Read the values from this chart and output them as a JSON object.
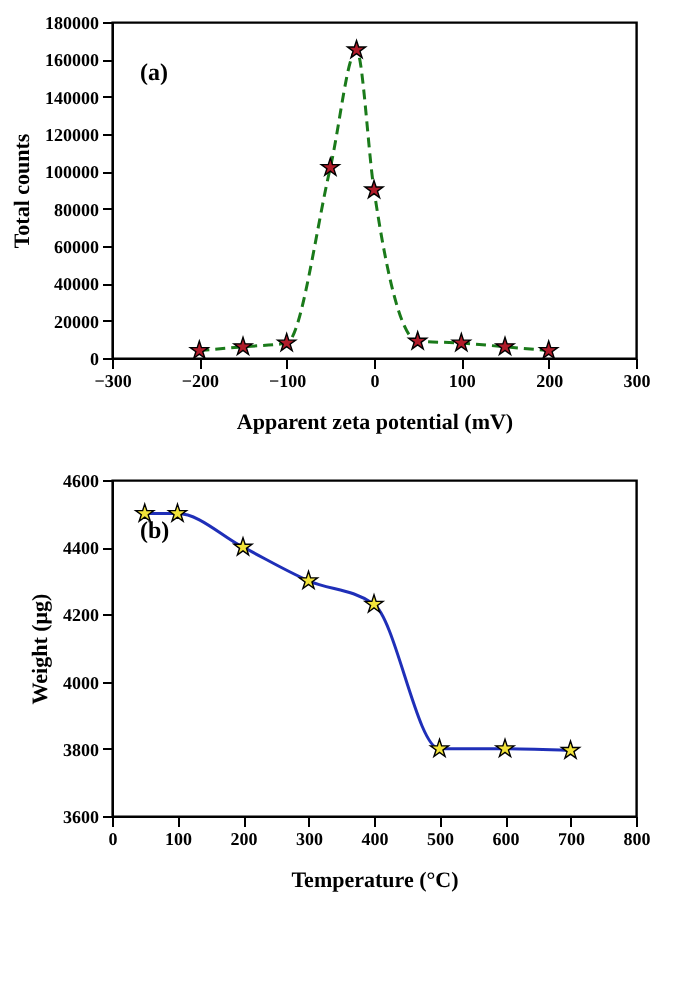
{
  "chart_data": [
    {
      "type": "line",
      "xlabel": "Apparent zeta potential (mV)",
      "ylabel": "Total counts",
      "annotations": [
        "(a)"
      ],
      "x": [
        -200,
        -150,
        -100,
        -50,
        -20,
        0,
        50,
        100,
        150,
        200
      ],
      "series": [
        {
          "type": "line",
          "color": "#1a7a1a",
          "line_style": "dashed",
          "marker": "none",
          "values": [
            4000,
            6000,
            8000,
            102000,
            165000,
            90000,
            9000,
            8000,
            6000,
            4000
          ]
        },
        {
          "type": "scatter",
          "color": "#b01c2a",
          "marker": "star",
          "values": [
            4000,
            6000,
            8000,
            102000,
            165000,
            90000,
            9000,
            8000,
            6000,
            4000
          ]
        }
      ],
      "xlim": [
        -300,
        300
      ],
      "xticks": [
        -300,
        -200,
        -100,
        0,
        100,
        200,
        300
      ],
      "ylim": [
        0,
        180000
      ],
      "yticks": [
        0,
        20000,
        40000,
        60000,
        80000,
        100000,
        120000,
        140000,
        160000,
        180000
      ],
      "grid": false
    },
    {
      "type": "line",
      "xlabel": "Temperature (°C)",
      "ylabel": "Weight (μg)",
      "annotations": [
        "(b)"
      ],
      "x": [
        50,
        100,
        200,
        300,
        400,
        500,
        600,
        700
      ],
      "series": [
        {
          "type": "line",
          "color": "#1f2fb8",
          "line_style": "solid",
          "marker": "none",
          "values": [
            4500,
            4500,
            4400,
            4300,
            4230,
            3800,
            3800,
            3795
          ]
        },
        {
          "type": "scatter",
          "color": "#f2e33a",
          "marker": "star",
          "values": [
            4500,
            4500,
            4400,
            4300,
            4230,
            3800,
            3800,
            3795
          ]
        }
      ],
      "xlim": [
        0,
        800
      ],
      "xticks": [
        0,
        100,
        200,
        300,
        400,
        500,
        600,
        700,
        800
      ],
      "ylim": [
        3600,
        4600
      ],
      "yticks": [
        3600,
        3800,
        4000,
        4200,
        4400,
        4600
      ],
      "grid": false
    }
  ]
}
